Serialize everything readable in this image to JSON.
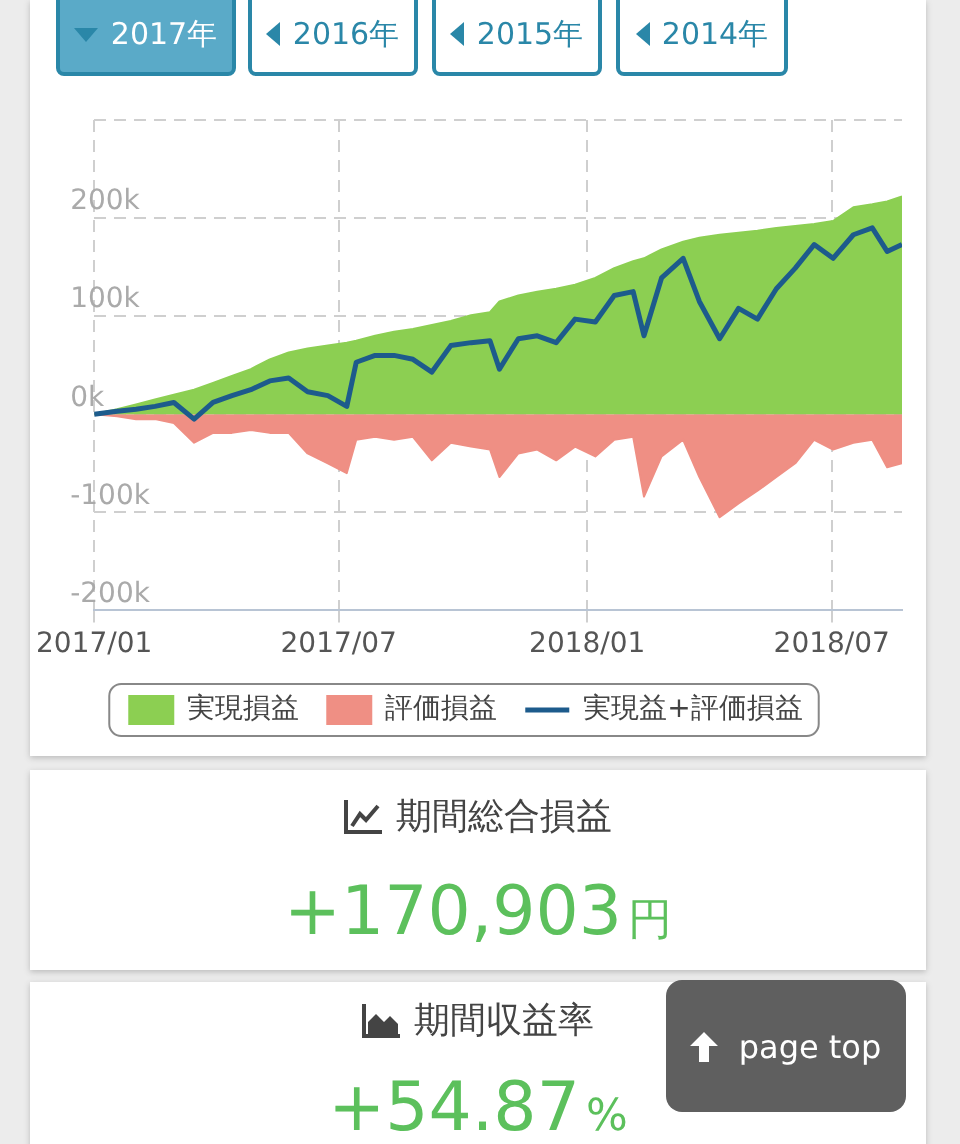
{
  "chart_data": {
    "type": "area",
    "x": [
      "2017-01-01",
      "2017-01-18",
      "2017-02-01",
      "2017-02-15",
      "2017-03-01",
      "2017-03-16",
      "2017-03-30",
      "2017-04-13",
      "2017-04-27",
      "2017-05-11",
      "2017-05-25",
      "2017-06-08",
      "2017-06-23",
      "2017-07-07",
      "2017-07-14",
      "2017-07-28",
      "2017-08-11",
      "2017-08-25",
      "2017-09-08",
      "2017-09-22",
      "2017-10-07",
      "2017-10-21",
      "2017-10-28",
      "2017-11-11",
      "2017-11-25",
      "2017-12-09",
      "2017-12-23",
      "2018-01-07",
      "2018-01-21",
      "2018-02-04",
      "2018-02-12",
      "2018-02-25",
      "2018-03-13",
      "2018-03-25",
      "2018-04-09",
      "2018-04-23",
      "2018-05-07",
      "2018-05-21",
      "2018-06-04",
      "2018-06-18",
      "2018-07-02",
      "2018-07-17",
      "2018-07-31",
      "2018-08-11",
      "2018-08-22"
    ],
    "series": [
      {
        "name": "実現損益",
        "color": "#8ccf52",
        "values": [
          0,
          5000,
          10000,
          15000,
          20000,
          25000,
          32000,
          39000,
          46000,
          56000,
          63000,
          67000,
          70000,
          73000,
          75000,
          80000,
          84000,
          87000,
          91000,
          95000,
          101000,
          104000,
          115000,
          121000,
          125000,
          128000,
          132000,
          139000,
          149000,
          156000,
          159000,
          168000,
          176000,
          180000,
          183000,
          185000,
          187000,
          190000,
          192000,
          194000,
          197000,
          211000,
          214000,
          217000,
          222000
        ]
      },
      {
        "name": "評価損益",
        "color": "#ef8f84",
        "values": [
          0,
          -2000,
          -5000,
          -5000,
          -9000,
          -29000,
          -19000,
          -19000,
          -16000,
          -19000,
          -19000,
          -40000,
          -50000,
          -60000,
          -26000,
          -23000,
          -26000,
          -23000,
          -47000,
          -29000,
          -33000,
          -36000,
          -64000,
          -40000,
          -36000,
          -47000,
          -33000,
          -43000,
          -26000,
          -23000,
          -84000,
          -43000,
          -26000,
          -64000,
          -105000,
          -91000,
          -78000,
          -64000,
          -50000,
          -26000,
          -36000,
          -29000,
          -26000,
          -54000,
          -50000
        ]
      },
      {
        "name": "実現益+評価損益",
        "type": "line",
        "color": "#1d5b8c",
        "values": [
          0,
          3000,
          5000,
          8000,
          12000,
          -5000,
          12000,
          19000,
          25000,
          34000,
          37000,
          23000,
          19000,
          8000,
          53000,
          60000,
          60000,
          56000,
          43000,
          70000,
          73000,
          75000,
          46000,
          77000,
          80000,
          73000,
          97000,
          94000,
          121000,
          125000,
          80000,
          139000,
          159000,
          115000,
          77000,
          108000,
          97000,
          128000,
          149000,
          173000,
          159000,
          183000,
          190000,
          166000,
          173000
        ]
      }
    ],
    "xlim": [
      "2017-01-01",
      "2018-08-22"
    ],
    "xticks": [
      {
        "value": "2017-01-01",
        "label": "2017/01"
      },
      {
        "value": "2017-07-01",
        "label": "2017/07"
      },
      {
        "value": "2018-01-01",
        "label": "2018/01"
      },
      {
        "value": "2018-07-01",
        "label": "2018/07"
      }
    ],
    "ylim": [
      -200000,
      300000
    ],
    "yticks": [
      {
        "value": -200000,
        "label": "-200k"
      },
      {
        "value": -100000,
        "label": "-100k"
      },
      {
        "value": 0,
        "label": "0k"
      },
      {
        "value": 100000,
        "label": "100k"
      },
      {
        "value": 200000,
        "label": "200k"
      },
      {
        "value": 300000,
        "label": null
      }
    ],
    "grid": true,
    "legend": "bottom",
    "marker": "none",
    "line_style": "solid",
    "annotations": [
      "2017年",
      "2016年",
      "2015年",
      "2014年",
      "期間総合損益",
      "+170,903円",
      "期間収益率",
      "+54.87%",
      "page top"
    ]
  }
}
